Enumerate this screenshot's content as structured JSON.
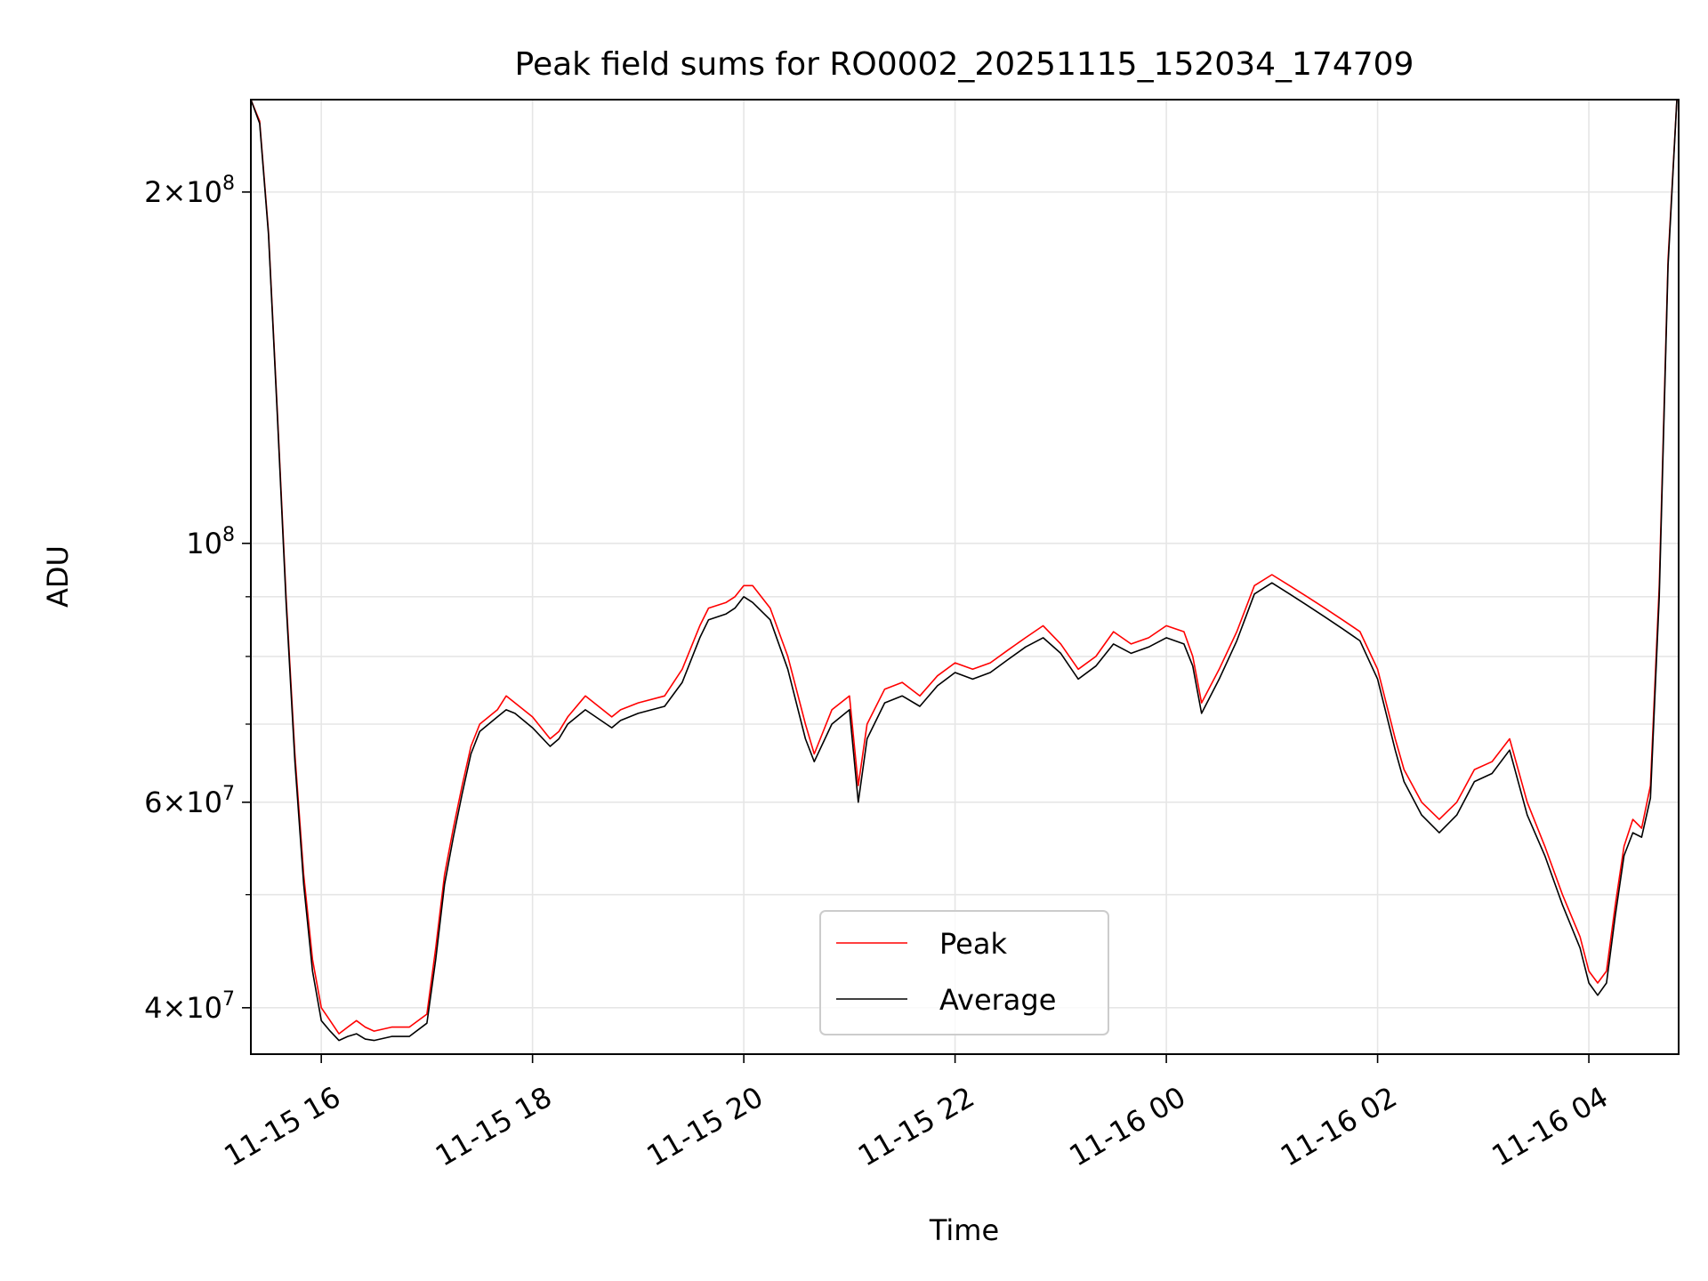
{
  "chart_data": {
    "type": "line",
    "title": "Peak field sums for RO0002_20251115_152034_174709",
    "xlabel": "Time",
    "ylabel": "ADU",
    "yscale": "log",
    "ylim": [
      36500000,
      240000000
    ],
    "xlim": [
      "2025-11-15 15:20",
      "2025-11-16 04:51"
    ],
    "grid": true,
    "legend": "lower-center",
    "x_ticks": [
      {
        "t": "2025-11-15 16:00",
        "label": "11-15 16"
      },
      {
        "t": "2025-11-15 18:00",
        "label": "11-15 18"
      },
      {
        "t": "2025-11-15 20:00",
        "label": "11-15 20"
      },
      {
        "t": "2025-11-15 22:00",
        "label": "11-15 22"
      },
      {
        "t": "2025-11-16 00:00",
        "label": "11-16 00"
      },
      {
        "t": "2025-11-16 02:00",
        "label": "11-16 02"
      },
      {
        "t": "2025-11-16 04:00",
        "label": "11-16 04"
      }
    ],
    "y_ticks": [
      {
        "value": 40000000,
        "mantissa": "4",
        "exponent": "7"
      },
      {
        "value": 60000000,
        "mantissa": "6",
        "exponent": "7"
      },
      {
        "value": 100000000,
        "mantissa": "",
        "exponent": "8"
      },
      {
        "value": 200000000,
        "mantissa": "2",
        "exponent": "8"
      }
    ],
    "y_minor_ticks": [
      50000000,
      70000000,
      80000000,
      90000000
    ],
    "series": [
      {
        "name": "Peak",
        "color": "#ff0000",
        "x": [
          "2025-11-15 15:20",
          "2025-11-15 15:25",
          "2025-11-15 15:30",
          "2025-11-15 15:35",
          "2025-11-15 15:40",
          "2025-11-15 15:45",
          "2025-11-15 15:50",
          "2025-11-15 15:55",
          "2025-11-15 16:00",
          "2025-11-15 16:05",
          "2025-11-15 16:10",
          "2025-11-15 16:15",
          "2025-11-15 16:20",
          "2025-11-15 16:25",
          "2025-11-15 16:30",
          "2025-11-15 16:40",
          "2025-11-15 16:50",
          "2025-11-15 17:00",
          "2025-11-15 17:05",
          "2025-11-15 17:10",
          "2025-11-15 17:15",
          "2025-11-15 17:20",
          "2025-11-15 17:25",
          "2025-11-15 17:30",
          "2025-11-15 17:40",
          "2025-11-15 17:45",
          "2025-11-15 17:50",
          "2025-11-15 18:00",
          "2025-11-15 18:10",
          "2025-11-15 18:15",
          "2025-11-15 18:20",
          "2025-11-15 18:30",
          "2025-11-15 18:45",
          "2025-11-15 18:50",
          "2025-11-15 19:00",
          "2025-11-15 19:15",
          "2025-11-15 19:25",
          "2025-11-15 19:35",
          "2025-11-15 19:40",
          "2025-11-15 19:50",
          "2025-11-15 19:55",
          "2025-11-15 20:00",
          "2025-11-15 20:05",
          "2025-11-15 20:15",
          "2025-11-15 20:25",
          "2025-11-15 20:35",
          "2025-11-15 20:40",
          "2025-11-15 20:50",
          "2025-11-15 21:00",
          "2025-11-15 21:05",
          "2025-11-15 21:10",
          "2025-11-15 21:20",
          "2025-11-15 21:30",
          "2025-11-15 21:40",
          "2025-11-15 21:50",
          "2025-11-15 22:00",
          "2025-11-15 22:10",
          "2025-11-15 22:20",
          "2025-11-15 22:30",
          "2025-11-15 22:40",
          "2025-11-15 22:50",
          "2025-11-15 23:00",
          "2025-11-15 23:10",
          "2025-11-15 23:20",
          "2025-11-15 23:30",
          "2025-11-15 23:40",
          "2025-11-15 23:50",
          "2025-11-16 00:00",
          "2025-11-16 00:10",
          "2025-11-16 00:15",
          "2025-11-16 00:20",
          "2025-11-16 00:30",
          "2025-11-16 00:40",
          "2025-11-16 00:50",
          "2025-11-16 01:00",
          "2025-11-16 01:10",
          "2025-11-16 01:20",
          "2025-11-16 01:30",
          "2025-11-16 01:40",
          "2025-11-16 01:50",
          "2025-11-16 02:00",
          "2025-11-16 02:10",
          "2025-11-16 02:15",
          "2025-11-16 02:25",
          "2025-11-16 02:35",
          "2025-11-16 02:45",
          "2025-11-16 02:55",
          "2025-11-16 03:05",
          "2025-11-16 03:15",
          "2025-11-16 03:25",
          "2025-11-16 03:35",
          "2025-11-16 03:45",
          "2025-11-16 03:55",
          "2025-11-16 04:00",
          "2025-11-16 04:05",
          "2025-11-16 04:10",
          "2025-11-16 04:15",
          "2025-11-16 04:20",
          "2025-11-16 04:25",
          "2025-11-16 04:30",
          "2025-11-16 04:35",
          "2025-11-16 04:40",
          "2025-11-16 04:45",
          "2025-11-16 04:50"
        ],
        "values": [
          240000000,
          230000000,
          185000000,
          130000000,
          90000000,
          66000000,
          52000000,
          44000000,
          40000000,
          39000000,
          38000000,
          38500000,
          39000000,
          38500000,
          38200000,
          38500000,
          38500000,
          39500000,
          45000000,
          52000000,
          57000000,
          62000000,
          67000000,
          70000000,
          72000000,
          74000000,
          73000000,
          71000000,
          68000000,
          69000000,
          71000000,
          74000000,
          71000000,
          72000000,
          73000000,
          74000000,
          78000000,
          85000000,
          88000000,
          89000000,
          90000000,
          92000000,
          92000000,
          88000000,
          80000000,
          70000000,
          66000000,
          72000000,
          74000000,
          62000000,
          70000000,
          75000000,
          76000000,
          74000000,
          77000000,
          79000000,
          78000000,
          79000000,
          81000000,
          83000000,
          85000000,
          82000000,
          78000000,
          80000000,
          84000000,
          82000000,
          83000000,
          85000000,
          84000000,
          80000000,
          73000000,
          78000000,
          84000000,
          92000000,
          94000000,
          92000000,
          90000000,
          88000000,
          86000000,
          84000000,
          78000000,
          68000000,
          64000000,
          60000000,
          58000000,
          60000000,
          64000000,
          65000000,
          68000000,
          60000000,
          55000000,
          50000000,
          46000000,
          43000000,
          42000000,
          43000000,
          49000000,
          55000000,
          58000000,
          57000000,
          62000000,
          92000000,
          175000000,
          240000000
        ]
      },
      {
        "name": "Average",
        "color": "#000000",
        "x": [
          "2025-11-15 15:20",
          "2025-11-15 15:25",
          "2025-11-15 15:30",
          "2025-11-15 15:35",
          "2025-11-15 15:40",
          "2025-11-15 15:45",
          "2025-11-15 15:50",
          "2025-11-15 15:55",
          "2025-11-15 16:00",
          "2025-11-15 16:05",
          "2025-11-15 16:10",
          "2025-11-15 16:15",
          "2025-11-15 16:20",
          "2025-11-15 16:25",
          "2025-11-15 16:30",
          "2025-11-15 16:40",
          "2025-11-15 16:50",
          "2025-11-15 17:00",
          "2025-11-15 17:05",
          "2025-11-15 17:10",
          "2025-11-15 17:15",
          "2025-11-15 17:20",
          "2025-11-15 17:25",
          "2025-11-15 17:30",
          "2025-11-15 17:40",
          "2025-11-15 17:45",
          "2025-11-15 17:50",
          "2025-11-15 18:00",
          "2025-11-15 18:10",
          "2025-11-15 18:15",
          "2025-11-15 18:20",
          "2025-11-15 18:30",
          "2025-11-15 18:45",
          "2025-11-15 18:50",
          "2025-11-15 19:00",
          "2025-11-15 19:15",
          "2025-11-15 19:25",
          "2025-11-15 19:35",
          "2025-11-15 19:40",
          "2025-11-15 19:50",
          "2025-11-15 19:55",
          "2025-11-15 20:00",
          "2025-11-15 20:05",
          "2025-11-15 20:15",
          "2025-11-15 20:25",
          "2025-11-15 20:35",
          "2025-11-15 20:40",
          "2025-11-15 20:50",
          "2025-11-15 21:00",
          "2025-11-15 21:05",
          "2025-11-15 21:10",
          "2025-11-15 21:20",
          "2025-11-15 21:30",
          "2025-11-15 21:40",
          "2025-11-15 21:50",
          "2025-11-15 22:00",
          "2025-11-15 22:10",
          "2025-11-15 22:20",
          "2025-11-15 22:30",
          "2025-11-15 22:40",
          "2025-11-15 22:50",
          "2025-11-15 23:00",
          "2025-11-15 23:10",
          "2025-11-15 23:20",
          "2025-11-15 23:30",
          "2025-11-15 23:40",
          "2025-11-15 23:50",
          "2025-11-16 00:00",
          "2025-11-16 00:10",
          "2025-11-16 00:15",
          "2025-11-16 00:20",
          "2025-11-16 00:30",
          "2025-11-16 00:40",
          "2025-11-16 00:50",
          "2025-11-16 01:00",
          "2025-11-16 01:10",
          "2025-11-16 01:20",
          "2025-11-16 01:30",
          "2025-11-16 01:40",
          "2025-11-16 01:50",
          "2025-11-16 02:00",
          "2025-11-16 02:10",
          "2025-11-16 02:15",
          "2025-11-16 02:25",
          "2025-11-16 02:35",
          "2025-11-16 02:45",
          "2025-11-16 02:55",
          "2025-11-16 03:05",
          "2025-11-16 03:15",
          "2025-11-16 03:25",
          "2025-11-16 03:35",
          "2025-11-16 03:45",
          "2025-11-16 03:55",
          "2025-11-16 04:00",
          "2025-11-16 04:05",
          "2025-11-16 04:10",
          "2025-11-16 04:15",
          "2025-11-16 04:20",
          "2025-11-16 04:25",
          "2025-11-16 04:30",
          "2025-11-16 04:35",
          "2025-11-16 04:40",
          "2025-11-16 04:45",
          "2025-11-16 04:50"
        ],
        "values": [
          240000000,
          229000000,
          184000000,
          129000000,
          89000000,
          65000000,
          51000000,
          43000000,
          39000000,
          38200000,
          37500000,
          37800000,
          38000000,
          37600000,
          37500000,
          37800000,
          37800000,
          38800000,
          44000000,
          51000000,
          56000000,
          61000000,
          66000000,
          69000000,
          71000000,
          72000000,
          71500000,
          69500000,
          67000000,
          68000000,
          70000000,
          72000000,
          69500000,
          70500000,
          71500000,
          72500000,
          76000000,
          83000000,
          86000000,
          87000000,
          88000000,
          90000000,
          89000000,
          86000000,
          78000000,
          68000000,
          65000000,
          70000000,
          72000000,
          60000000,
          68000000,
          73000000,
          74000000,
          72500000,
          75500000,
          77500000,
          76500000,
          77500000,
          79500000,
          81500000,
          83000000,
          80500000,
          76500000,
          78500000,
          82000000,
          80500000,
          81500000,
          83000000,
          82000000,
          78500000,
          71500000,
          76500000,
          82500000,
          90500000,
          92500000,
          90500000,
          88500000,
          86500000,
          84500000,
          82500000,
          76500000,
          66500000,
          62500000,
          58500000,
          56500000,
          58500000,
          62500000,
          63500000,
          66500000,
          58500000,
          54000000,
          49000000,
          45000000,
          42000000,
          41000000,
          42000000,
          48000000,
          54000000,
          56500000,
          56000000,
          60500000,
          90000000,
          173000000,
          240000000
        ]
      }
    ]
  }
}
